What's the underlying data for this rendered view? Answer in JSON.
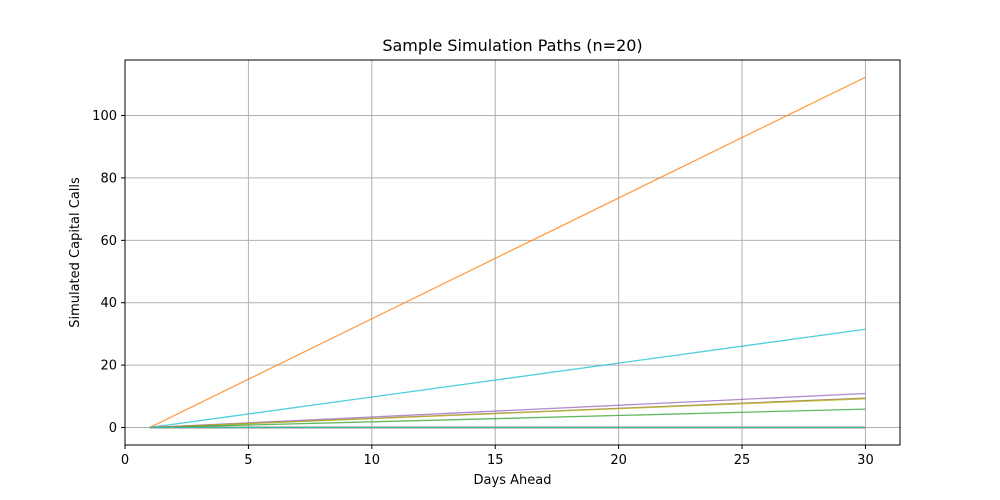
{
  "chart_data": {
    "type": "line",
    "title": "Sample Simulation Paths (n=20)",
    "xlabel": "Days Ahead",
    "ylabel": "Simulated Capital Calls",
    "xlim": [
      0,
      31.4
    ],
    "ylim": [
      -5.6,
      117.8
    ],
    "xticks": [
      0,
      5,
      10,
      15,
      20,
      25,
      30
    ],
    "yticks": [
      0,
      20,
      40,
      60,
      80,
      100
    ],
    "grid": true,
    "x": [
      1,
      30
    ],
    "series": [
      {
        "color": "#ff7f0e",
        "values": [
          0,
          112.3
        ]
      },
      {
        "color": "#17becf",
        "values": [
          0,
          31.5
        ]
      },
      {
        "color": "#9467bd",
        "values": [
          0,
          10.9
        ]
      },
      {
        "color": "#8c564b",
        "values": [
          0,
          9.4
        ]
      },
      {
        "color": "#bcbd22",
        "values": [
          0,
          9.2
        ]
      },
      {
        "color": "#2ca02c",
        "values": [
          0,
          5.9
        ]
      },
      {
        "color": "#1f77b4",
        "values": [
          0,
          0
        ]
      },
      {
        "color": "#d62728",
        "values": [
          0,
          0
        ]
      },
      {
        "color": "#e377c2",
        "values": [
          0,
          0
        ]
      },
      {
        "color": "#7f7f7f",
        "values": [
          0,
          0
        ]
      },
      {
        "color": "#1f77b4",
        "values": [
          0,
          0
        ]
      },
      {
        "color": "#ff7f0e",
        "values": [
          0,
          0
        ]
      },
      {
        "color": "#2ca02c",
        "values": [
          0,
          0
        ]
      },
      {
        "color": "#d62728",
        "values": [
          0,
          0
        ]
      },
      {
        "color": "#9467bd",
        "values": [
          0,
          0
        ]
      },
      {
        "color": "#8c564b",
        "values": [
          0,
          0
        ]
      },
      {
        "color": "#e377c2",
        "values": [
          0,
          0
        ]
      },
      {
        "color": "#7f7f7f",
        "values": [
          0,
          0
        ]
      },
      {
        "color": "#bcbd22",
        "values": [
          0,
          0
        ]
      },
      {
        "color": "#17becf",
        "values": [
          0,
          0
        ]
      }
    ]
  }
}
